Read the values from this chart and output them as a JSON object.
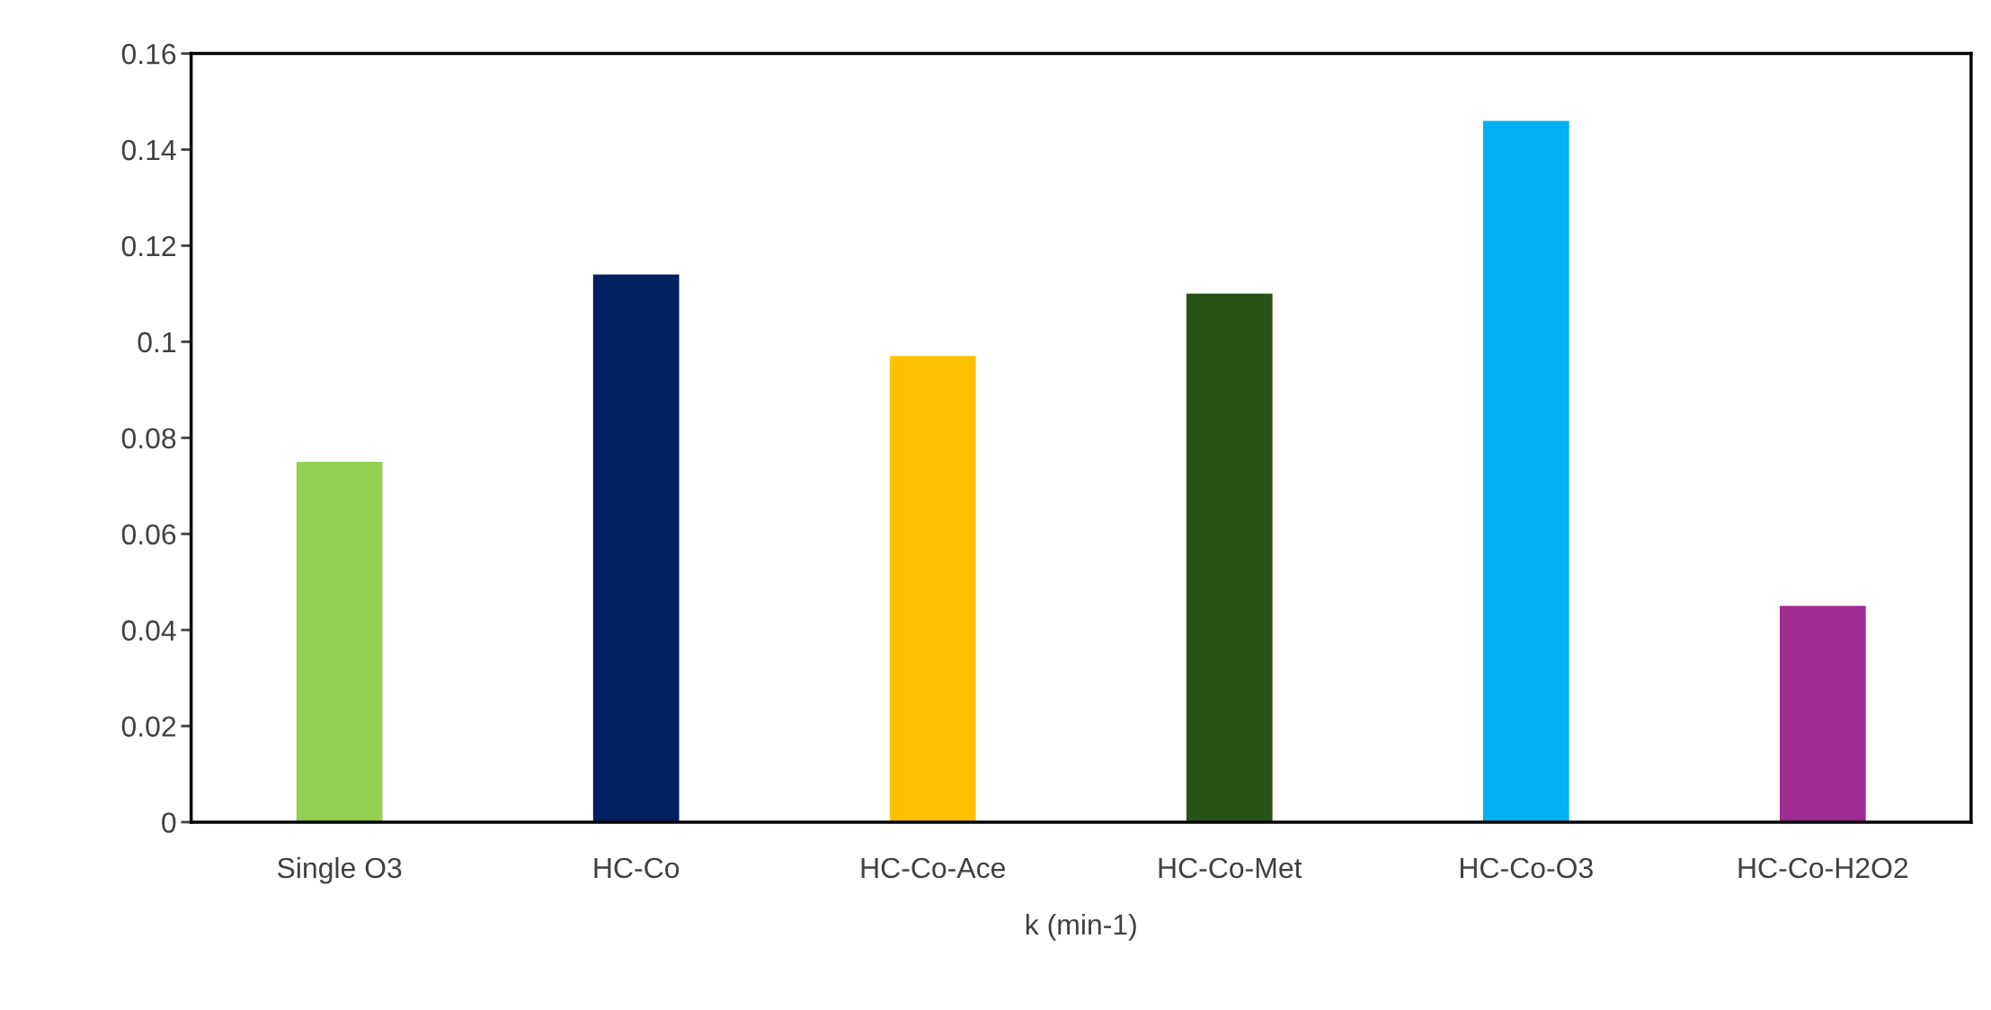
{
  "chart_data": {
    "type": "bar",
    "xlabel": "k (min-1)",
    "categories": [
      "Single O3",
      "HC-Co",
      "HC-Co-Ace",
      "HC-Co-Met",
      "HC-Co-O3",
      "HC-Co-H2O2"
    ],
    "values": [
      0.075,
      0.114,
      0.097,
      0.11,
      0.146,
      0.045
    ],
    "colors": [
      "#92d050",
      "#002060",
      "#ffc000",
      "#275317",
      "#00b0f0",
      "#a02b93"
    ],
    "ylim": [
      0,
      0.16
    ],
    "yticks": [
      0,
      0.02,
      0.04,
      0.06,
      0.08,
      0.1,
      0.12,
      0.14,
      0.16
    ],
    "grid": false,
    "legend": false
  }
}
